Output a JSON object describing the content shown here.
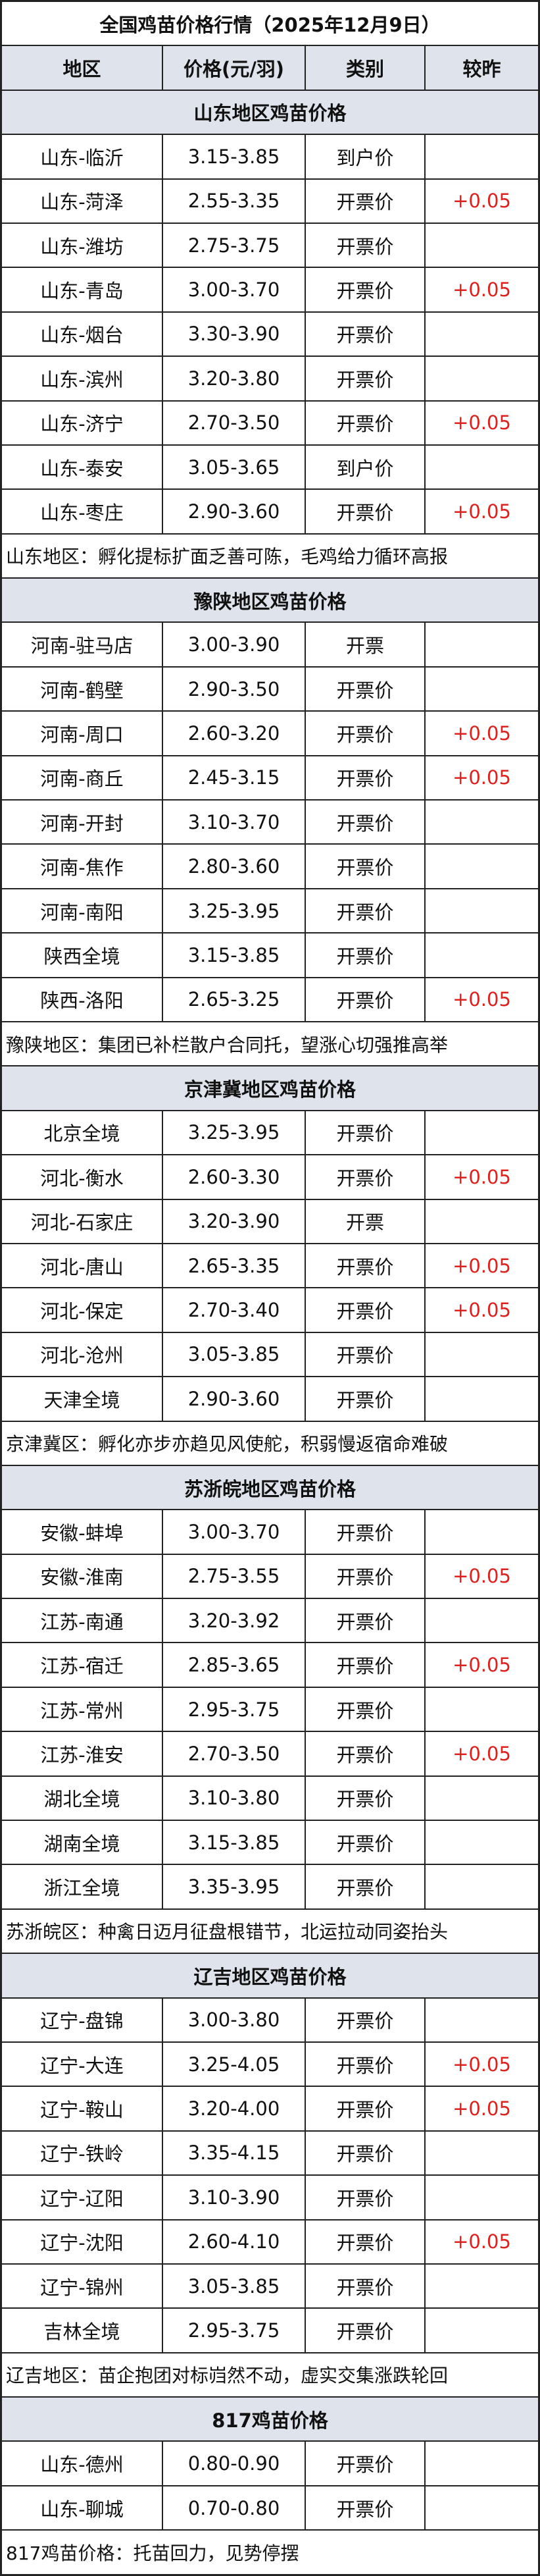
{
  "title": "全国鸡苗价格行情（2025年12月9日）",
  "header": [
    "地区",
    "价格(元/羽)",
    "类别",
    "较昨"
  ],
  "sections": [
    {
      "title": "山东地区鸡苗价格",
      "rows": [
        [
          "山东-临沂",
          "3.15-3.85",
          "到户价",
          null
        ],
        [
          "山东-菏泽",
          "2.55-3.35",
          "开票价",
          "+0.05"
        ],
        [
          "山东-潍坊",
          "2.75-3.75",
          "开票价",
          null
        ],
        [
          "山东-青岛",
          "3.00-3.70",
          "开票价",
          "+0.05"
        ],
        [
          "山东-烟台",
          "3.30-3.90",
          "开票价",
          null
        ],
        [
          "山东-滨州",
          "3.20-3.80",
          "开票价",
          null
        ],
        [
          "山东-济宁",
          "2.70-3.50",
          "开票价",
          "+0.05"
        ],
        [
          "山东-泰安",
          "3.05-3.65",
          "到户价",
          null
        ],
        [
          "山东-枣庄",
          "2.90-3.60",
          "开票价",
          "+0.05"
        ]
      ],
      "note": "山东地区：孵化提标扩面乏善可陈，毛鸡给力循环高报"
    },
    {
      "title": "豫陕地区鸡苗价格",
      "rows": [
        [
          "河南-驻马店",
          "3.00-3.90",
          "开票",
          null
        ],
        [
          "河南-鹤壁",
          "2.90-3.50",
          "开票价",
          null
        ],
        [
          "河南-周口",
          "2.60-3.20",
          "开票价",
          "+0.05"
        ],
        [
          "河南-商丘",
          "2.45-3.15",
          "开票价",
          "+0.05"
        ],
        [
          "河南-开封",
          "3.10-3.70",
          "开票价",
          null
        ],
        [
          "河南-焦作",
          "2.80-3.60",
          "开票价",
          null
        ],
        [
          "河南-南阳",
          "3.25-3.95",
          "开票价",
          null
        ],
        [
          "陕西全境",
          "3.15-3.85",
          "开票价",
          null
        ],
        [
          "陕西-洛阳",
          "2.65-3.25",
          "开票价",
          "+0.05"
        ]
      ],
      "note": "豫陕地区：集团已补栏散户合同托，望涨心切强推高举"
    },
    {
      "title": "京津冀地区鸡苗价格",
      "rows": [
        [
          "北京全境",
          "3.25-3.95",
          "开票价",
          null
        ],
        [
          "河北-衡水",
          "2.60-3.30",
          "开票价",
          "+0.05"
        ],
        [
          "河北-石家庄",
          "3.20-3.90",
          "开票",
          null
        ],
        [
          "河北-唐山",
          "2.65-3.35",
          "开票价",
          "+0.05"
        ],
        [
          "河北-保定",
          "2.70-3.40",
          "开票价",
          "+0.05"
        ],
        [
          "河北-沧州",
          "3.05-3.85",
          "开票价",
          null
        ],
        [
          "天津全境",
          "2.90-3.60",
          "开票价",
          null
        ]
      ],
      "note": "京津冀区：孵化亦步亦趋见风使舵，积弱慢返宿命难破"
    },
    {
      "title": "苏浙皖地区鸡苗价格",
      "rows": [
        [
          "安徽-蚌埠",
          "3.00-3.70",
          "开票价",
          null
        ],
        [
          "安徽-淮南",
          "2.75-3.55",
          "开票价",
          "+0.05"
        ],
        [
          "江苏-南通",
          "3.20-3.92",
          "开票价",
          null
        ],
        [
          "江苏-宿迁",
          "2.85-3.65",
          "开票价",
          "+0.05"
        ],
        [
          "江苏-常州",
          "2.95-3.75",
          "开票价",
          null
        ],
        [
          "江苏-淮安",
          "2.70-3.50",
          "开票价",
          "+0.05"
        ],
        [
          "湖北全境",
          "3.10-3.80",
          "开票价",
          null
        ],
        [
          "湖南全境",
          "3.15-3.85",
          "开票价",
          null
        ],
        [
          "浙江全境",
          "3.35-3.95",
          "开票价",
          null
        ]
      ],
      "note": "苏浙皖区：种禽日迈月征盘根错节，北运拉动同姿抬头"
    },
    {
      "title": "辽吉地区鸡苗价格",
      "rows": [
        [
          "辽宁-盘锦",
          "3.00-3.80",
          "开票价",
          null
        ],
        [
          "辽宁-大连",
          "3.25-4.05",
          "开票价",
          "+0.05"
        ],
        [
          "辽宁-鞍山",
          "3.20-4.00",
          "开票价",
          "+0.05"
        ],
        [
          "辽宁-铁岭",
          "3.35-4.15",
          "开票价",
          null
        ],
        [
          "辽宁-辽阳",
          "3.10-3.90",
          "开票价",
          null
        ],
        [
          "辽宁-沈阳",
          "2.60-4.10",
          "开票价",
          "+0.05"
        ],
        [
          "辽宁-锦州",
          "3.05-3.85",
          "开票价",
          null
        ],
        [
          "吉林全境",
          "2.95-3.75",
          "开票价",
          null
        ]
      ],
      "note": "辽吉地区：苗企抱团对标岿然不动，虚实交集涨跌轮回"
    },
    {
      "title": "817鸡苗价格",
      "rows": [
        [
          "山东-德州",
          "0.80-0.90",
          "开票价",
          null
        ],
        [
          "山东-聊城",
          "0.70-0.80",
          "开票价",
          null
        ]
      ],
      "note": "817鸡苗价格：托苗回力，见势停摆"
    }
  ]
}
